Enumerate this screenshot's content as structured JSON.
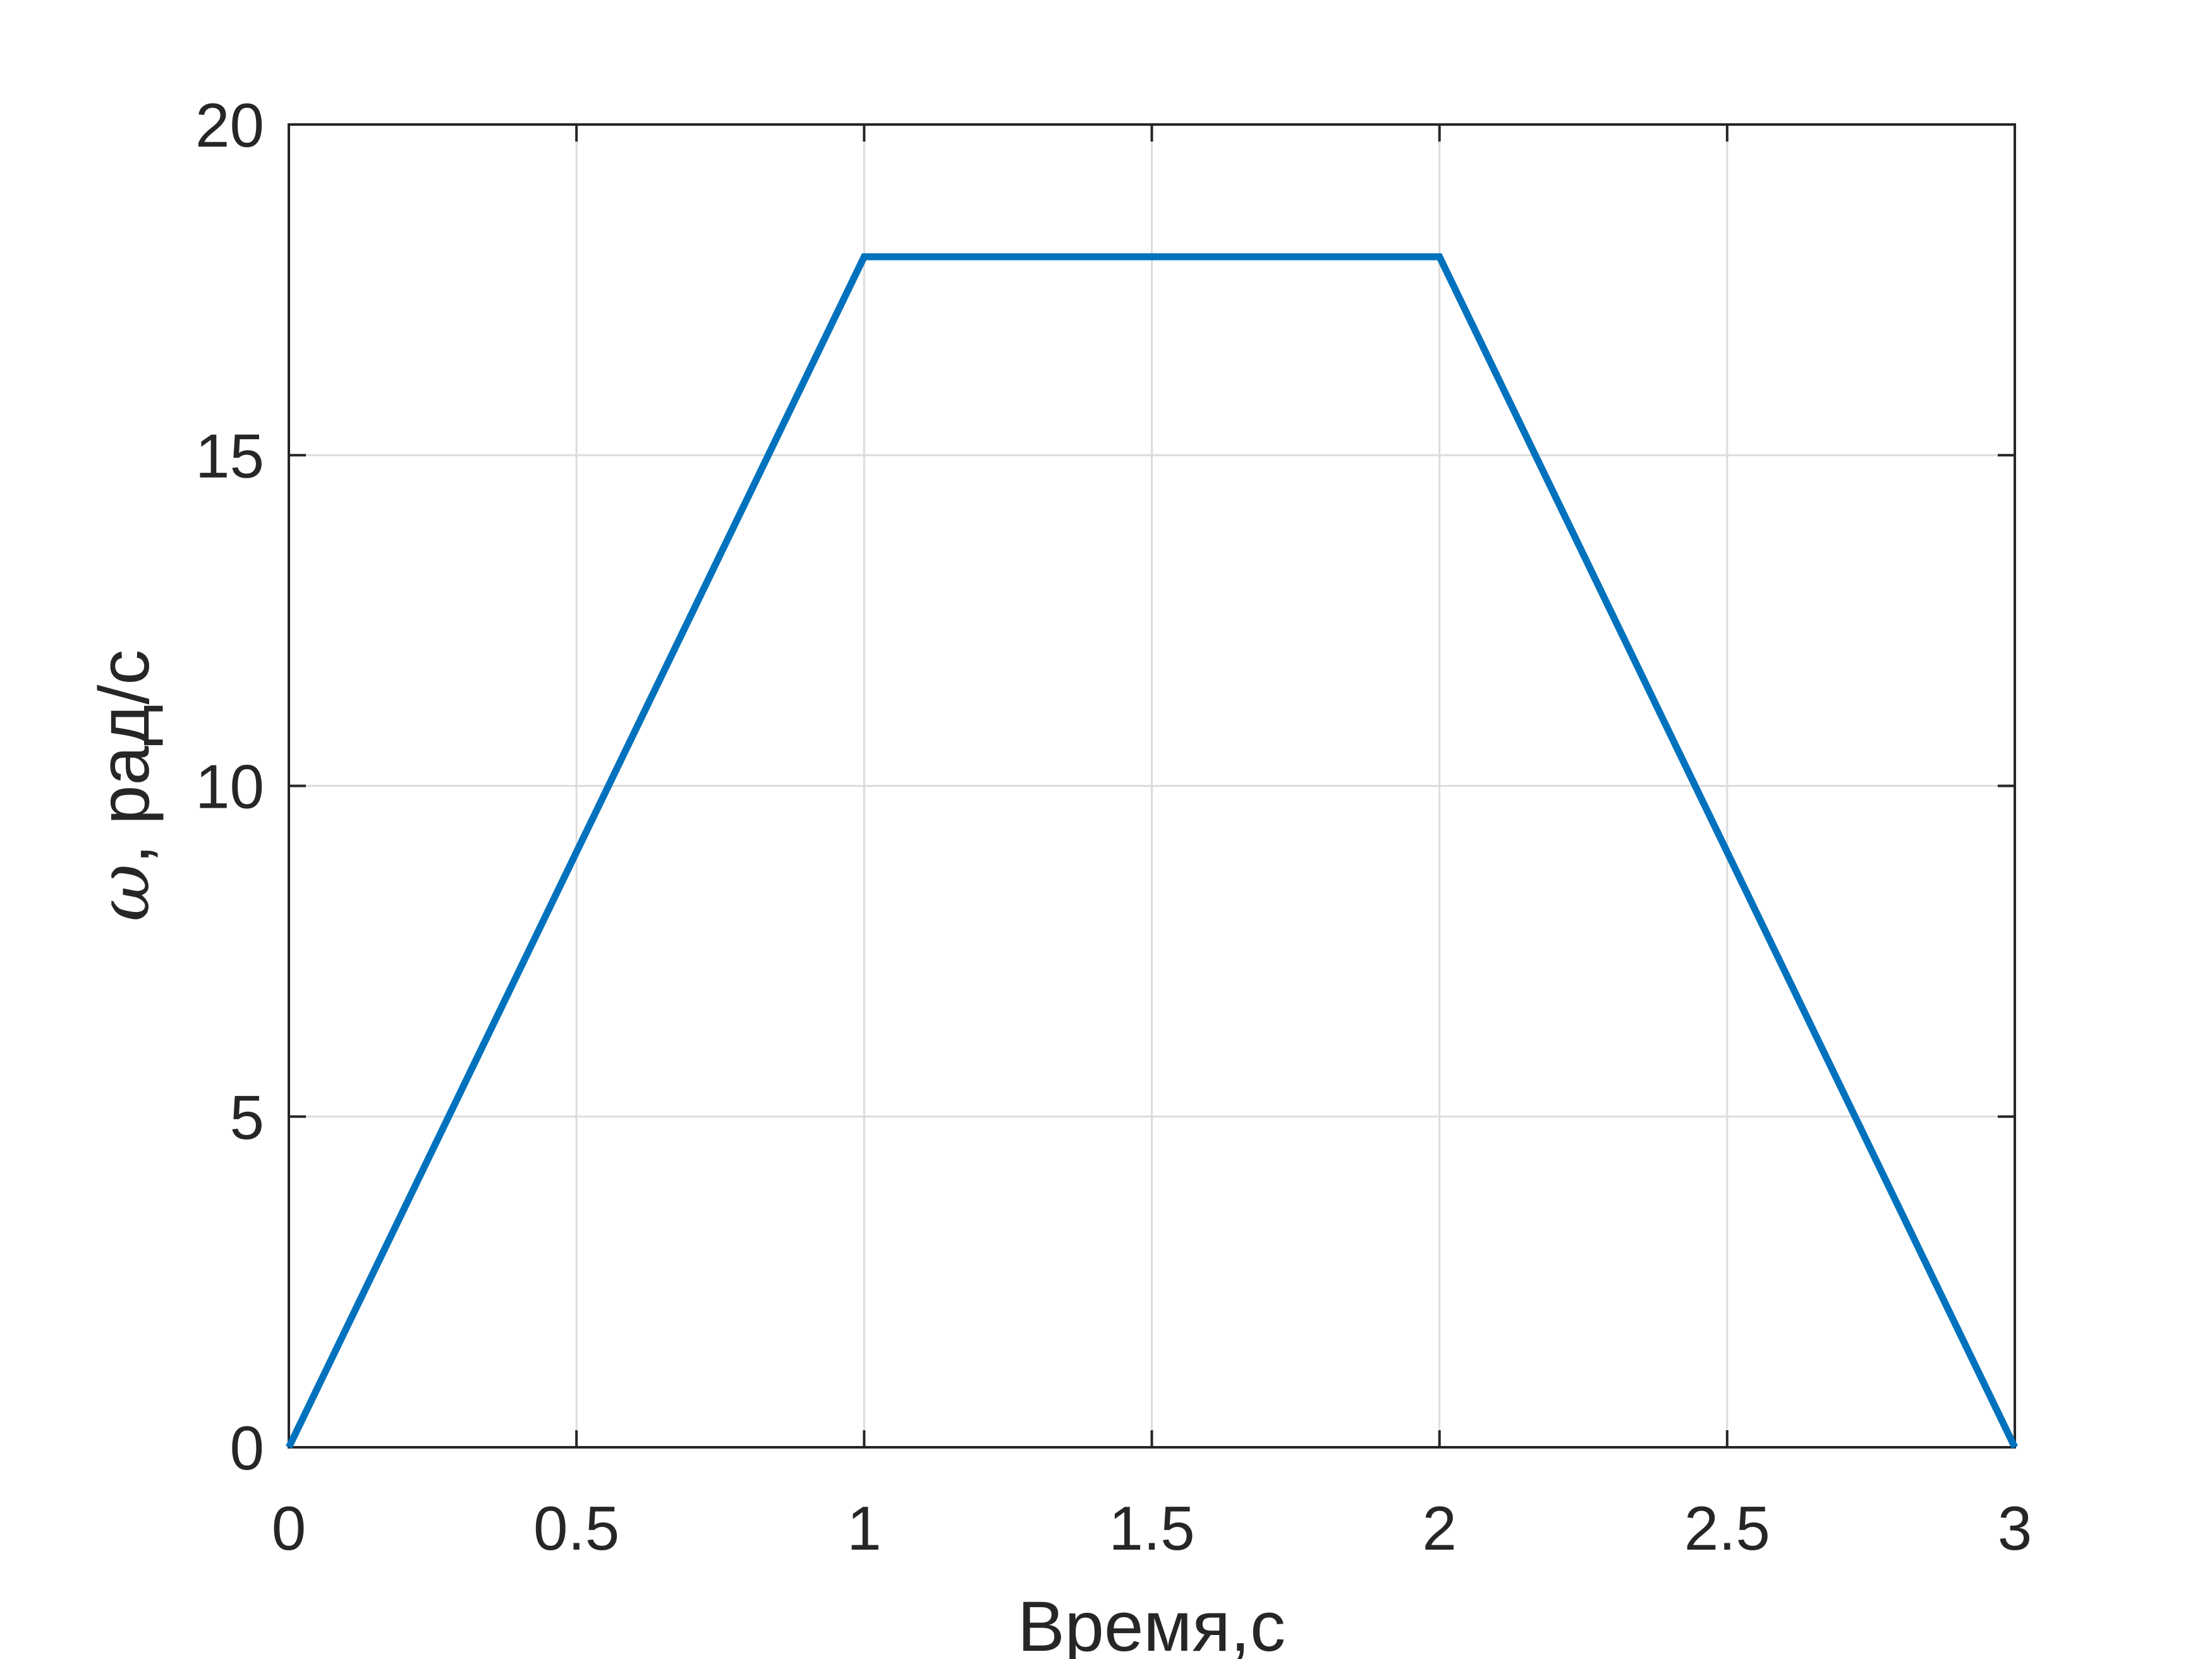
{
  "chart_data": {
    "type": "line",
    "title": "",
    "xlabel": "Время,с",
    "ylabel_symbol": "ω",
    "ylabel_text": ", рад/с",
    "xlim": [
      0,
      3
    ],
    "ylim": [
      0,
      20
    ],
    "xticks": [
      0,
      0.5,
      1,
      1.5,
      2,
      2.5,
      3
    ],
    "xtick_labels": [
      "0",
      "0.5",
      "1",
      "1.5",
      "2",
      "2.5",
      "3"
    ],
    "yticks": [
      0,
      5,
      10,
      15,
      20
    ],
    "ytick_labels": [
      "0",
      "5",
      "10",
      "15",
      "20"
    ],
    "grid": true,
    "series": [
      {
        "color": "#0072BD",
        "x": [
          0,
          1,
          2,
          3
        ],
        "y": [
          0,
          18,
          18,
          0
        ]
      }
    ]
  }
}
